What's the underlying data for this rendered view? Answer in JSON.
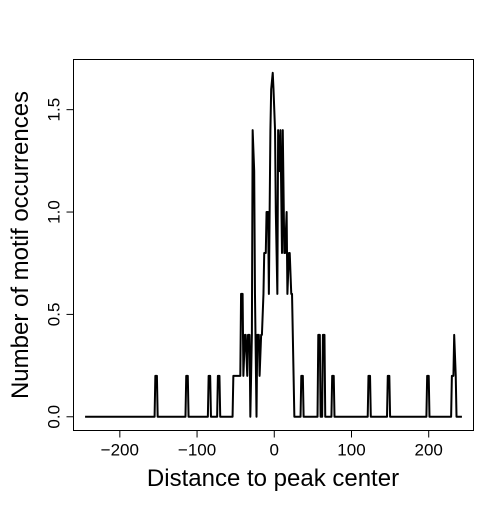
{
  "chart_data": {
    "type": "line",
    "title": "",
    "xlabel": "Distance to peak center",
    "ylabel": "Number of motif occurrences",
    "xlim": [
      -260,
      258
    ],
    "ylim": [
      -0.067,
      1.745
    ],
    "xticks": [
      -200,
      -100,
      0,
      100,
      200
    ],
    "xtick_labels": [
      "−200",
      "−100",
      "0",
      "100",
      "200"
    ],
    "yticks": [
      0.0,
      0.5,
      1.0,
      1.5
    ],
    "ytick_labels": [
      "0.0",
      "0.5",
      "1.0",
      "1.5"
    ],
    "grid": false,
    "legend": "none",
    "line_color": "#000000",
    "series": [
      {
        "x": [
          -245,
          -155,
          -154,
          -152,
          -151,
          -115,
          -114,
          -112,
          -111,
          -86,
          -85,
          -83,
          -82,
          -74,
          -73,
          -71,
          -70,
          -54,
          -53,
          -50,
          -49,
          -47,
          -46,
          -44,
          -43,
          -41,
          -40,
          -38,
          -37,
          -35,
          -34,
          -32,
          -31,
          -29,
          -28,
          -26,
          -25,
          -23,
          -22,
          -20,
          -19,
          -17,
          -16,
          -14,
          -13,
          -11,
          -10,
          -8,
          -7,
          -5,
          -4,
          -2,
          -1,
          1,
          2,
          4,
          5,
          7,
          8,
          10,
          11,
          13,
          14,
          16,
          17,
          19,
          20,
          22,
          23,
          25,
          26,
          28,
          29,
          31,
          32,
          34,
          35,
          37,
          38,
          40,
          41,
          56,
          57,
          59,
          60,
          62,
          63,
          65,
          66,
          68,
          69,
          74,
          75,
          77,
          78,
          121,
          122,
          124,
          125,
          146,
          147,
          149,
          150,
          197,
          198,
          200,
          201,
          229,
          230,
          232,
          233,
          235,
          236,
          243
        ],
        "y": [
          0,
          0,
          0.2,
          0.2,
          0,
          0,
          0.2,
          0.2,
          0,
          0,
          0.2,
          0.2,
          0,
          0,
          0.2,
          0.2,
          0,
          0,
          0.2,
          0.2,
          0.2,
          0.2,
          0.2,
          0.2,
          0.6,
          0.6,
          0.2,
          0.4,
          0.4,
          0.2,
          0.4,
          0.4,
          0,
          0.4,
          1.4,
          1.2,
          0.6,
          0,
          0.4,
          0.4,
          0.2,
          0.4,
          0.4,
          0.6,
          0.8,
          0.8,
          1.0,
          1.0,
          0.6,
          1.4,
          1.6,
          1.68,
          1.6,
          1.4,
          1.0,
          0.6,
          1.4,
          1.2,
          1.4,
          0.8,
          1.4,
          0.8,
          0.8,
          1.0,
          0.6,
          0.8,
          0.8,
          0.6,
          0.6,
          0.2,
          0,
          0,
          0,
          0,
          0,
          0,
          0.2,
          0.2,
          0,
          0,
          0,
          0,
          0.4,
          0.4,
          0,
          0,
          0.4,
          0.4,
          0,
          0,
          0,
          0,
          0.2,
          0.2,
          0,
          0,
          0.2,
          0.2,
          0,
          0,
          0.2,
          0.2,
          0,
          0,
          0.2,
          0.2,
          0,
          0,
          0.2,
          0.2,
          0.4,
          0.2,
          0,
          0
        ]
      }
    ]
  }
}
